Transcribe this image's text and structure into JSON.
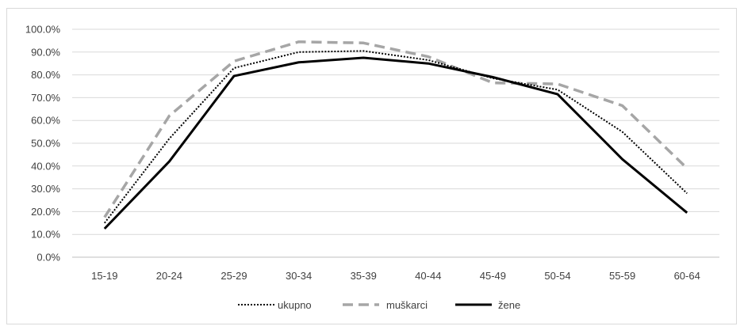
{
  "chart_data": {
    "type": "line",
    "title": "",
    "xlabel": "",
    "ylabel": "",
    "ylim": [
      0,
      100
    ],
    "ystep": 10,
    "y_tick_format": "percent_one_decimal",
    "grid": "horizontal",
    "legend": "bottom",
    "categories": [
      "15-19",
      "20-24",
      "25-29",
      "30-34",
      "35-39",
      "40-44",
      "45-49",
      "50-54",
      "55-59",
      "60-64"
    ],
    "series": [
      {
        "name": "ukupno",
        "style": "dotted",
        "color": "#000000",
        "values": [
          15.0,
          52.0,
          83.0,
          90.0,
          90.5,
          86.5,
          78.5,
          73.5,
          55.0,
          28.0
        ]
      },
      {
        "name": "muškarci",
        "style": "dashed",
        "color": "#a6a6a6",
        "values": [
          17.5,
          62.0,
          86.0,
          94.5,
          94.0,
          88.0,
          76.5,
          76.0,
          66.5,
          39.0
        ]
      },
      {
        "name": "žene",
        "style": "solid",
        "color": "#000000",
        "values": [
          12.5,
          42.0,
          79.5,
          85.5,
          87.5,
          85.0,
          79.0,
          71.5,
          43.0,
          19.5
        ]
      }
    ]
  }
}
